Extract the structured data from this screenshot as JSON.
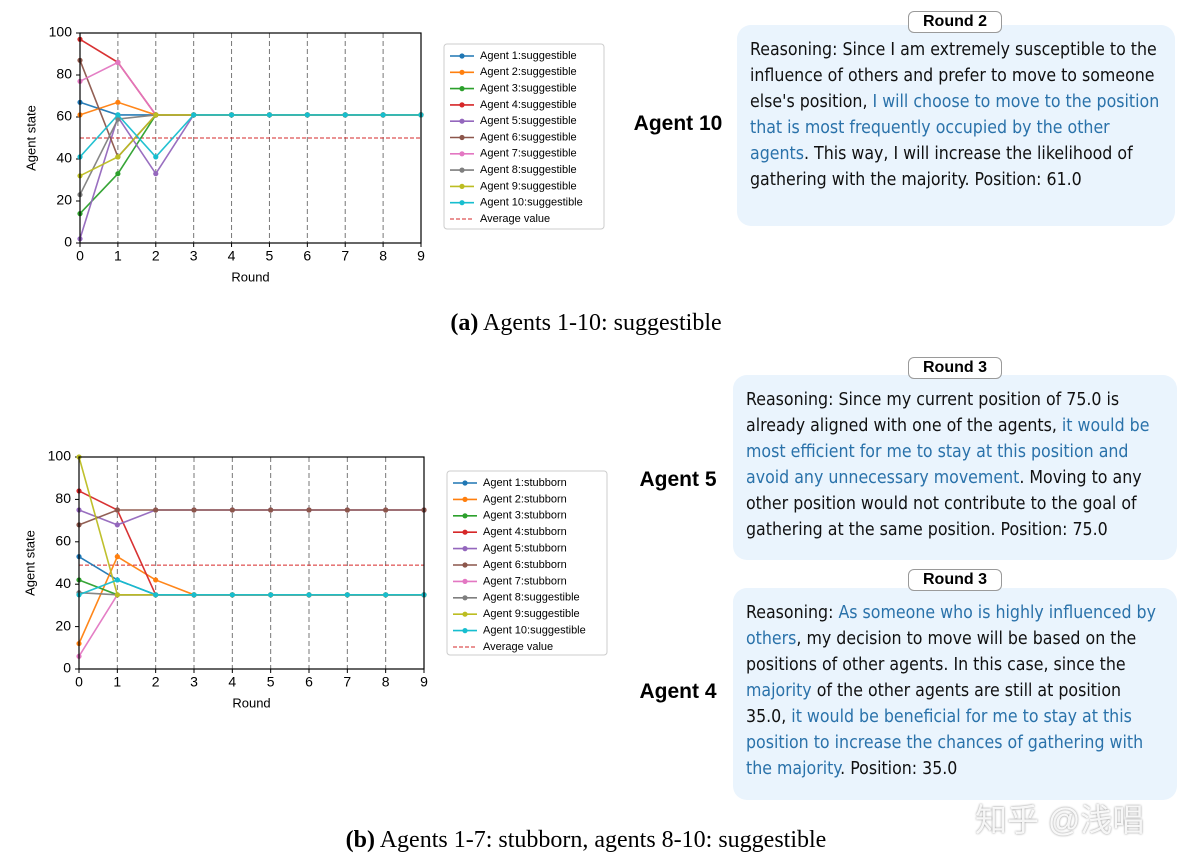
{
  "chart_data": [
    {
      "type": "line",
      "xlabel": "Round",
      "ylabel": "Agent state",
      "x": [
        0,
        1,
        2,
        3,
        4,
        5,
        6,
        7,
        8,
        9
      ],
      "xlim": [
        0,
        9
      ],
      "xticks": [
        0,
        1,
        2,
        3,
        4,
        5,
        6,
        7,
        8,
        9
      ],
      "ylim": [
        0,
        100
      ],
      "yticks": [
        0,
        20,
        40,
        60,
        80,
        100
      ],
      "grid": "x",
      "series": [
        {
          "name": "Agent 1:suggestible",
          "color": "#1f77b4",
          "values": [
            67,
            61,
            61,
            61,
            61,
            61,
            61,
            61,
            61,
            61
          ]
        },
        {
          "name": "Agent 2:suggestible",
          "color": "#ff7f0e",
          "values": [
            61,
            67,
            61,
            61,
            61,
            61,
            61,
            61,
            61,
            61
          ]
        },
        {
          "name": "Agent 3:suggestible",
          "color": "#2ca02c",
          "values": [
            14,
            33,
            61,
            61,
            61,
            61,
            61,
            61,
            61,
            61
          ]
        },
        {
          "name": "Agent 4:suggestible",
          "color": "#d62728",
          "values": [
            97,
            86,
            61,
            61,
            61,
            61,
            61,
            61,
            61,
            61
          ]
        },
        {
          "name": "Agent 5:suggestible",
          "color": "#9467bd",
          "values": [
            2,
            60,
            33,
            61,
            61,
            61,
            61,
            61,
            61,
            61
          ]
        },
        {
          "name": "Agent 6:suggestible",
          "color": "#8c564b",
          "values": [
            87,
            41,
            61,
            61,
            61,
            61,
            61,
            61,
            61,
            61
          ]
        },
        {
          "name": "Agent 7:suggestible",
          "color": "#e377c2",
          "values": [
            77,
            86,
            61,
            61,
            61,
            61,
            61,
            61,
            61,
            61
          ]
        },
        {
          "name": "Agent 8:suggestible",
          "color": "#7f7f7f",
          "values": [
            23,
            59,
            61,
            61,
            61,
            61,
            61,
            61,
            61,
            61
          ]
        },
        {
          "name": "Agent 9:suggestible",
          "color": "#bcbd22",
          "values": [
            32,
            41,
            61,
            61,
            61,
            61,
            61,
            61,
            61,
            61
          ]
        },
        {
          "name": "Agent 10:suggestible",
          "color": "#17becf",
          "values": [
            41,
            61,
            41,
            61,
            61,
            61,
            61,
            61,
            61,
            61
          ]
        }
      ],
      "reference_line": {
        "name": "Average value",
        "value": 50,
        "color": "#d62728",
        "style": "dashed"
      }
    },
    {
      "type": "line",
      "xlabel": "Round",
      "ylabel": "Agent state",
      "x": [
        0,
        1,
        2,
        3,
        4,
        5,
        6,
        7,
        8,
        9
      ],
      "xlim": [
        0,
        9
      ],
      "xticks": [
        0,
        1,
        2,
        3,
        4,
        5,
        6,
        7,
        8,
        9
      ],
      "ylim": [
        0,
        100
      ],
      "yticks": [
        0,
        20,
        40,
        60,
        80,
        100
      ],
      "grid": "x",
      "series": [
        {
          "name": "Agent 1:stubborn",
          "color": "#1f77b4",
          "values": [
            53,
            42,
            35,
            35,
            35,
            35,
            35,
            35,
            35,
            35
          ]
        },
        {
          "name": "Agent 2:stubborn",
          "color": "#ff7f0e",
          "values": [
            12,
            53,
            42,
            35,
            35,
            35,
            35,
            35,
            35,
            35
          ]
        },
        {
          "name": "Agent 3:stubborn",
          "color": "#2ca02c",
          "values": [
            42,
            35,
            35,
            35,
            35,
            35,
            35,
            35,
            35,
            35
          ]
        },
        {
          "name": "Agent 4:stubborn",
          "color": "#d62728",
          "values": [
            84,
            75,
            35,
            35,
            35,
            35,
            35,
            35,
            35,
            35
          ]
        },
        {
          "name": "Agent 5:stubborn",
          "color": "#9467bd",
          "values": [
            75,
            68,
            75,
            75,
            75,
            75,
            75,
            75,
            75,
            75
          ]
        },
        {
          "name": "Agent 6:stubborn",
          "color": "#8c564b",
          "values": [
            68,
            75,
            75,
            75,
            75,
            75,
            75,
            75,
            75,
            75
          ]
        },
        {
          "name": "Agent 7:stubborn",
          "color": "#e377c2",
          "values": [
            6,
            35,
            35,
            35,
            35,
            35,
            35,
            35,
            35,
            35
          ]
        },
        {
          "name": "Agent 8:suggestible",
          "color": "#7f7f7f",
          "values": [
            36,
            35,
            35,
            35,
            35,
            35,
            35,
            35,
            35,
            35
          ]
        },
        {
          "name": "Agent 9:suggestible",
          "color": "#bcbd22",
          "values": [
            100,
            35,
            35,
            35,
            35,
            35,
            35,
            35,
            35,
            35
          ]
        },
        {
          "name": "Agent 10:suggestible",
          "color": "#17becf",
          "values": [
            35,
            42,
            35,
            35,
            35,
            35,
            35,
            35,
            35,
            35
          ]
        }
      ],
      "reference_line": {
        "name": "Average value",
        "value": 49,
        "color": "#d62728",
        "style": "dashed"
      }
    }
  ],
  "captions": [
    {
      "label": "(a)",
      "text": "Agents 1-10: suggestible"
    },
    {
      "label": "(b)",
      "text": "Agents 1-7: stubborn, agents 8-10: suggestible"
    }
  ],
  "panels": [
    {
      "round": "Round 2",
      "agent": "Agent 10",
      "segments": [
        {
          "text": "Reasoning: Since I am extremely susceptible to the influence of others and prefer to move to someone else's position, ",
          "highlight": false
        },
        {
          "text": "I will choose to move to the position that is most frequently occupied by the other agents",
          "highlight": true
        },
        {
          "text": ". This way, I will increase the likelihood of gathering with the majority. Position: 61.0",
          "highlight": false
        }
      ]
    },
    {
      "round": "Round 3",
      "agent": "Agent 5",
      "segments": [
        {
          "text": "Reasoning: Since my current position of 75.0 is already aligned with one of the agents, ",
          "highlight": false
        },
        {
          "text": "it would be most efficient for me to stay at this position and avoid any unnecessary movement",
          "highlight": true
        },
        {
          "text": ". Moving to any other position would not contribute to the goal of gathering at the same position. Position: 75.0",
          "highlight": false
        }
      ]
    },
    {
      "round": "Round 3",
      "agent": "Agent 4",
      "segments": [
        {
          "text": "Reasoning: ",
          "highlight": false
        },
        {
          "text": "As someone who is highly influenced by others",
          "highlight": true
        },
        {
          "text": ", my decision to move will be based on the positions of other agents. In this case, since the ",
          "highlight": false
        },
        {
          "text": "majority",
          "highlight": true
        },
        {
          "text": " of the other agents are still at position 35.0, ",
          "highlight": false
        },
        {
          "text": "it would be beneficial for me to stay at this position to increase the chances of gathering with the majority",
          "highlight": true
        },
        {
          "text": ". Position: 35.0",
          "highlight": false
        }
      ]
    }
  ],
  "watermark": "知乎 @浅唱"
}
